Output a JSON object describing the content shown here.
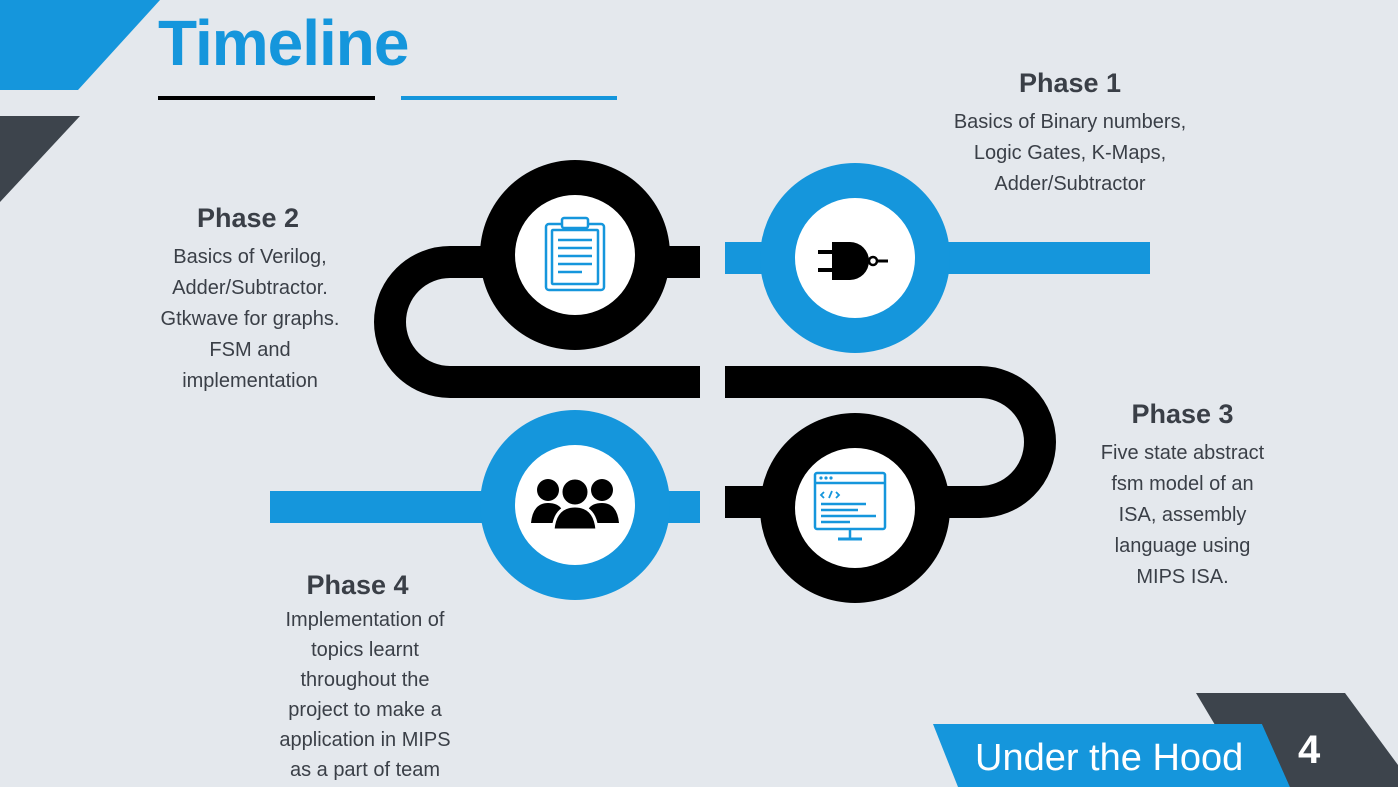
{
  "title": "Timeline",
  "colors": {
    "accent": "#1596dc",
    "dark": "#000000",
    "slate": "#3d444c",
    "background": "#e4e8ed"
  },
  "phases": [
    {
      "title": "Phase 1",
      "body": "Basics of Binary numbers,\nLogic Gates, K-Maps,\nAdder/Subtractor",
      "icon": "logic-gate-icon"
    },
    {
      "title": "Phase 2",
      "body": "Basics of Verilog,\nAdder/Subtractor.\nGtkwave for graphs.\nFSM and\nimplementation",
      "icon": "clipboard-icon"
    },
    {
      "title": "Phase 3",
      "body": "Five state abstract\nfsm model of an\nISA, assembly\nlanguage using\nMIPS ISA.",
      "icon": "code-monitor-icon"
    },
    {
      "title": "Phase 4",
      "body": "Implementation of\ntopics  learnt\nthroughout the\nproject to make a\napplication in MIPS\nas a part of team",
      "icon": "team-icon"
    }
  ],
  "footer": {
    "label": "Under the Hood",
    "page_number": "4"
  }
}
